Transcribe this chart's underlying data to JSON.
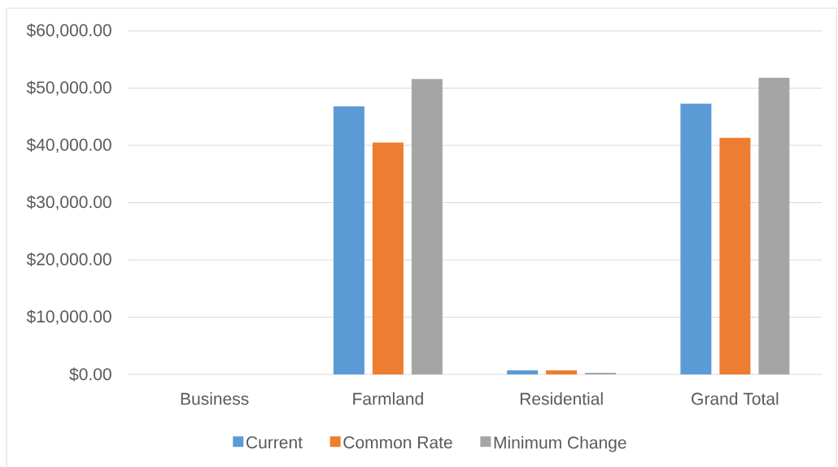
{
  "chart_data": {
    "type": "bar",
    "categories": [
      "Business",
      "Farmland",
      "Residential",
      "Grand Total"
    ],
    "series": [
      {
        "name": "Current",
        "color": "#5b9bd5",
        "values": [
          0,
          46800,
          700,
          47300
        ]
      },
      {
        "name": "Common Rate",
        "color": "#ed7d31",
        "values": [
          0,
          40500,
          700,
          41300
        ]
      },
      {
        "name": "Minimum Change",
        "color": "#a5a5a5",
        "values": [
          0,
          51600,
          300,
          51800
        ]
      }
    ],
    "ylim": [
      0,
      60000
    ],
    "yticks": [
      {
        "value": 0,
        "label": "$0.00"
      },
      {
        "value": 10000,
        "label": "$10,000.00"
      },
      {
        "value": 20000,
        "label": "$20,000.00"
      },
      {
        "value": 30000,
        "label": "$30,000.00"
      },
      {
        "value": 40000,
        "label": "$40,000.00"
      },
      {
        "value": 50000,
        "label": "$50,000.00"
      },
      {
        "value": 60000,
        "label": "$60,000.00"
      }
    ],
    "grid": "y",
    "legend": "bottom"
  }
}
